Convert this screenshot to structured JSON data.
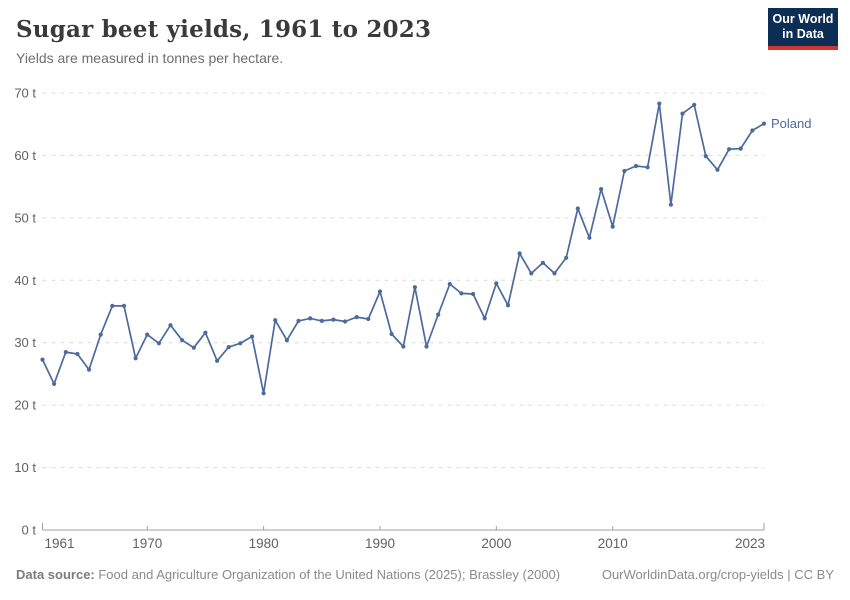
{
  "header": {
    "title": "Sugar beet yields, 1961 to 2023",
    "subtitle": "Yields are measured in tonnes per hectare."
  },
  "logo": {
    "line1": "Our World",
    "line2": "in Data",
    "bg_color": "#0d2e54",
    "accent_color": "#d0342c"
  },
  "chart_data": {
    "type": "line",
    "title": "Sugar beet yields, 1961 to 2023",
    "ylabel": "",
    "xlabel": "",
    "unit_suffix": " t",
    "grid": "horizontal-dashed",
    "legend_position": "end-of-line",
    "xlim": [
      1961,
      2023
    ],
    "ylim": [
      0,
      70
    ],
    "ytick_step": 10,
    "xticks": [
      1961,
      1970,
      1980,
      1990,
      2000,
      2010,
      2023
    ],
    "x": [
      1961,
      1962,
      1963,
      1964,
      1965,
      1966,
      1967,
      1968,
      1969,
      1970,
      1971,
      1972,
      1973,
      1974,
      1975,
      1976,
      1977,
      1978,
      1979,
      1980,
      1981,
      1982,
      1983,
      1984,
      1985,
      1986,
      1987,
      1988,
      1989,
      1990,
      1991,
      1992,
      1993,
      1994,
      1995,
      1996,
      1997,
      1998,
      1999,
      2000,
      2001,
      2002,
      2003,
      2004,
      2005,
      2006,
      2007,
      2008,
      2009,
      2010,
      2011,
      2012,
      2013,
      2014,
      2015,
      2016,
      2017,
      2018,
      2019,
      2020,
      2021,
      2022,
      2023
    ],
    "series": [
      {
        "name": "Poland",
        "color": "#4c6a9c",
        "values": [
          27.3,
          23.4,
          28.5,
          28.2,
          25.7,
          31.3,
          35.9,
          35.9,
          27.5,
          31.3,
          29.9,
          32.8,
          30.4,
          29.2,
          31.6,
          27.1,
          29.3,
          29.9,
          31.0,
          21.9,
          33.6,
          30.4,
          33.5,
          33.9,
          33.5,
          33.7,
          33.4,
          34.1,
          33.8,
          38.2,
          31.4,
          29.4,
          38.9,
          29.4,
          34.5,
          39.4,
          37.9,
          37.8,
          33.9,
          39.5,
          36.0,
          44.3,
          41.1,
          42.8,
          41.1,
          43.6,
          51.5,
          46.8,
          54.6,
          48.6,
          57.5,
          58.3,
          58.1,
          68.3,
          52.1,
          66.7,
          68.1,
          59.9,
          57.7,
          61.0,
          61.1,
          64.0,
          65.1
        ]
      }
    ],
    "axis_color": "#a0a0a0",
    "grid_color": "#dcdcdc",
    "tick_label_color": "#616161"
  },
  "footer": {
    "source_label": "Data source:",
    "source_text": " Food and Agriculture Organization of the United Nations (2025); Brassley (2000)",
    "right_text": "OurWorldinData.org/crop-yields | CC BY"
  }
}
